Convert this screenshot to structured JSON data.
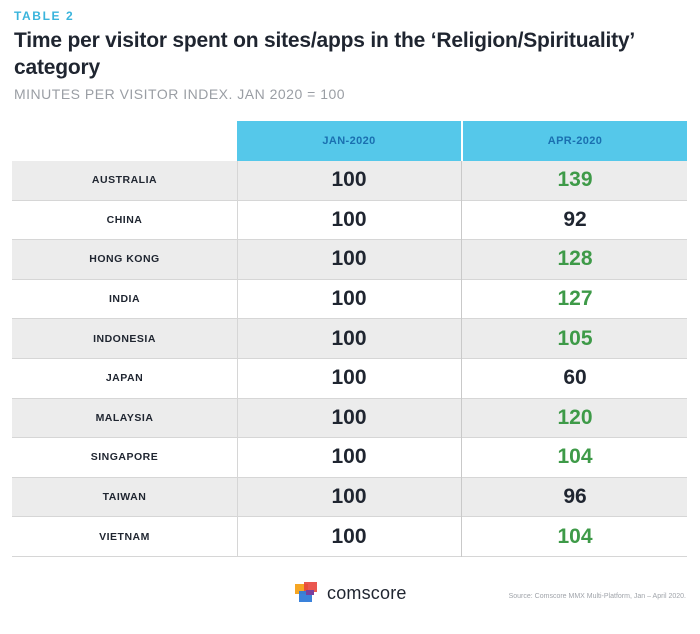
{
  "header": {
    "kicker": "TABLE 2",
    "title": "Time per visitor spent on sites/apps in the ‘Religion/Spirituality’ category",
    "subtitle": "MINUTES PER VISITOR INDEX. JAN 2020 = 100"
  },
  "chart_data": {
    "type": "table",
    "columns": [
      "JAN-2020",
      "APR-2020"
    ],
    "rows": [
      {
        "country": "AUSTRALIA",
        "jan": "100",
        "apr": "139",
        "up": true
      },
      {
        "country": "CHINA",
        "jan": "100",
        "apr": "92",
        "up": false
      },
      {
        "country": "HONG KONG",
        "jan": "100",
        "apr": "128",
        "up": true
      },
      {
        "country": "INDIA",
        "jan": "100",
        "apr": "127",
        "up": true
      },
      {
        "country": "INDONESIA",
        "jan": "100",
        "apr": "105",
        "up": true
      },
      {
        "country": "JAPAN",
        "jan": "100",
        "apr": "60",
        "up": false
      },
      {
        "country": "MALAYSIA",
        "jan": "100",
        "apr": "120",
        "up": true
      },
      {
        "country": "SINGAPORE",
        "jan": "100",
        "apr": "104",
        "up": true
      },
      {
        "country": "TAIWAN",
        "jan": "100",
        "apr": "96",
        "up": false
      },
      {
        "country": "VIETNAM",
        "jan": "100",
        "apr": "104",
        "up": true
      }
    ]
  },
  "colors": {
    "increase": "#3e9a48",
    "decrease": "#1f2530",
    "header_bg": "#55c8ea",
    "header_text": "#1a6fb0"
  },
  "footer": {
    "brand": "comscore",
    "source": "Source: Comscore MMX Multi-Platform, Jan – April 2020."
  }
}
